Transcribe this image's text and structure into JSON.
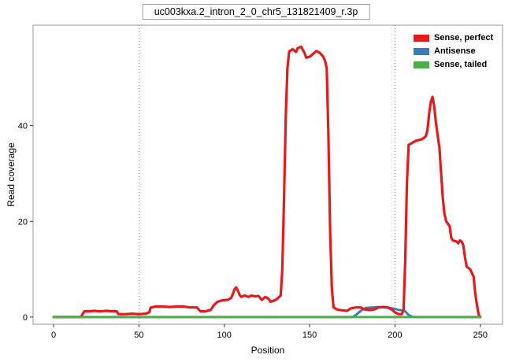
{
  "chart_data": {
    "type": "line",
    "title": "uc003kxa.2_intron_2_0_chr5_131821409_r.3p",
    "xlabel": "Position",
    "ylabel": "Read coverage",
    "xlim": [
      -12,
      263
    ],
    "ylim": [
      -1.5,
      61
    ],
    "x_ticks": [
      0,
      50,
      100,
      150,
      200,
      250
    ],
    "y_ticks": [
      0,
      20,
      40
    ],
    "vlines": [
      50,
      200
    ],
    "grid": "off",
    "panel_border_color": "#999999",
    "vline_color": "#777777",
    "legend": {
      "position": "top-right",
      "items": [
        {
          "label": "Sense, perfect",
          "color": "#e41a1c"
        },
        {
          "label": "Antisense",
          "color": "#377eb8"
        },
        {
          "label": "Sense, tailed",
          "color": "#4daf4a"
        }
      ]
    },
    "series": [
      {
        "name": "Sense, perfect",
        "color": "#e41a1c",
        "width": 3.2,
        "z": 2,
        "points": [
          [
            0,
            0
          ],
          [
            16,
            0
          ],
          [
            18,
            1.2
          ],
          [
            21,
            1.2
          ],
          [
            24,
            1.3
          ],
          [
            27,
            1.2
          ],
          [
            31,
            1.3
          ],
          [
            35,
            1.2
          ],
          [
            37,
            1.2
          ],
          [
            38,
            0.6
          ],
          [
            42,
            0.6
          ],
          [
            46,
            0.7
          ],
          [
            50,
            0.6
          ],
          [
            54,
            0.7
          ],
          [
            56,
            1
          ],
          [
            57,
            2
          ],
          [
            60,
            2.2
          ],
          [
            64,
            2.2
          ],
          [
            68,
            2.1
          ],
          [
            72,
            2.2
          ],
          [
            76,
            2.2
          ],
          [
            80,
            2
          ],
          [
            84,
            2
          ],
          [
            86,
            1.2
          ],
          [
            89,
            1.2
          ],
          [
            92,
            1.5
          ],
          [
            94,
            2.5
          ],
          [
            96,
            3.2
          ],
          [
            99,
            3.5
          ],
          [
            102,
            3.6
          ],
          [
            104,
            4
          ],
          [
            105,
            4.8
          ],
          [
            106,
            5.8
          ],
          [
            107,
            6.2
          ],
          [
            108,
            5.5
          ],
          [
            109,
            4.6
          ],
          [
            110,
            4.2
          ],
          [
            112,
            4.5
          ],
          [
            114,
            4.2
          ],
          [
            116,
            4.5
          ],
          [
            118,
            4.3
          ],
          [
            120,
            4.4
          ],
          [
            122,
            3.6
          ],
          [
            124,
            4.2
          ],
          [
            126,
            3.8
          ],
          [
            127,
            3.2
          ],
          [
            129,
            3.4
          ],
          [
            131,
            3.8
          ],
          [
            133,
            4.5
          ],
          [
            134,
            10
          ],
          [
            135,
            25
          ],
          [
            136,
            42
          ],
          [
            137,
            52
          ],
          [
            138,
            55.5
          ],
          [
            140,
            56
          ],
          [
            142,
            55.4
          ],
          [
            143,
            56.2
          ],
          [
            145,
            56.5
          ],
          [
            147,
            55.2
          ],
          [
            148,
            54.2
          ],
          [
            150,
            54.4
          ],
          [
            152,
            55
          ],
          [
            154,
            55.6
          ],
          [
            156,
            55.2
          ],
          [
            158,
            54.4
          ],
          [
            159,
            53.6
          ],
          [
            160,
            52
          ],
          [
            161,
            38
          ],
          [
            162,
            18
          ],
          [
            163,
            6
          ],
          [
            164,
            2
          ],
          [
            166,
            1.6
          ],
          [
            169,
            1.4
          ],
          [
            172,
            1.3
          ],
          [
            174,
            1.8
          ],
          [
            177,
            2
          ],
          [
            180,
            2
          ],
          [
            182,
            1.6
          ],
          [
            185,
            1.5
          ],
          [
            188,
            1.6
          ],
          [
            190,
            2
          ],
          [
            193,
            2.1
          ],
          [
            196,
            2
          ],
          [
            198,
            1.6
          ],
          [
            200,
            1
          ],
          [
            202,
            0.6
          ],
          [
            204,
            0.6
          ],
          [
            205,
            1.5
          ],
          [
            206,
            12
          ],
          [
            207,
            28
          ],
          [
            208,
            36
          ],
          [
            210,
            36.4
          ],
          [
            212,
            36.8
          ],
          [
            214,
            37
          ],
          [
            216,
            37.2
          ],
          [
            218,
            37.8
          ],
          [
            219,
            39
          ],
          [
            220,
            42.5
          ],
          [
            221,
            45
          ],
          [
            222,
            46
          ],
          [
            223,
            44
          ],
          [
            224,
            40.5
          ],
          [
            225,
            38
          ],
          [
            226,
            35.5
          ],
          [
            227,
            30
          ],
          [
            228,
            25
          ],
          [
            229,
            21.5
          ],
          [
            230,
            20
          ],
          [
            231,
            19.5
          ],
          [
            232,
            19
          ],
          [
            233,
            16.5
          ],
          [
            234,
            16
          ],
          [
            236,
            15.8
          ],
          [
            237,
            15.4
          ],
          [
            238,
            16
          ],
          [
            239,
            15.8
          ],
          [
            240,
            15
          ],
          [
            241,
            12.5
          ],
          [
            242,
            10.5
          ],
          [
            244,
            10
          ],
          [
            246,
            8.5
          ],
          [
            247,
            5
          ],
          [
            248,
            2.5
          ],
          [
            249,
            0.5
          ],
          [
            250,
            0
          ]
        ]
      },
      {
        "name": "Antisense",
        "color": "#377eb8",
        "width": 3,
        "z": 1,
        "points": [
          [
            0,
            0
          ],
          [
            175,
            0
          ],
          [
            177,
            0.4
          ],
          [
            179,
            1
          ],
          [
            181,
            1.6
          ],
          [
            183,
            1.9
          ],
          [
            186,
            2
          ],
          [
            190,
            2.1
          ],
          [
            194,
            2
          ],
          [
            197,
            1.9
          ],
          [
            200,
            1.7
          ],
          [
            202,
            1.5
          ],
          [
            204,
            1.4
          ],
          [
            206,
            1.2
          ],
          [
            207,
            0.8
          ],
          [
            208,
            0.4
          ],
          [
            210,
            0.1
          ],
          [
            212,
            0
          ],
          [
            250,
            0
          ]
        ]
      },
      {
        "name": "Sense, tailed",
        "color": "#4daf4a",
        "width": 3,
        "z": 3,
        "points": [
          [
            0,
            0
          ],
          [
            250,
            0
          ]
        ]
      }
    ]
  }
}
